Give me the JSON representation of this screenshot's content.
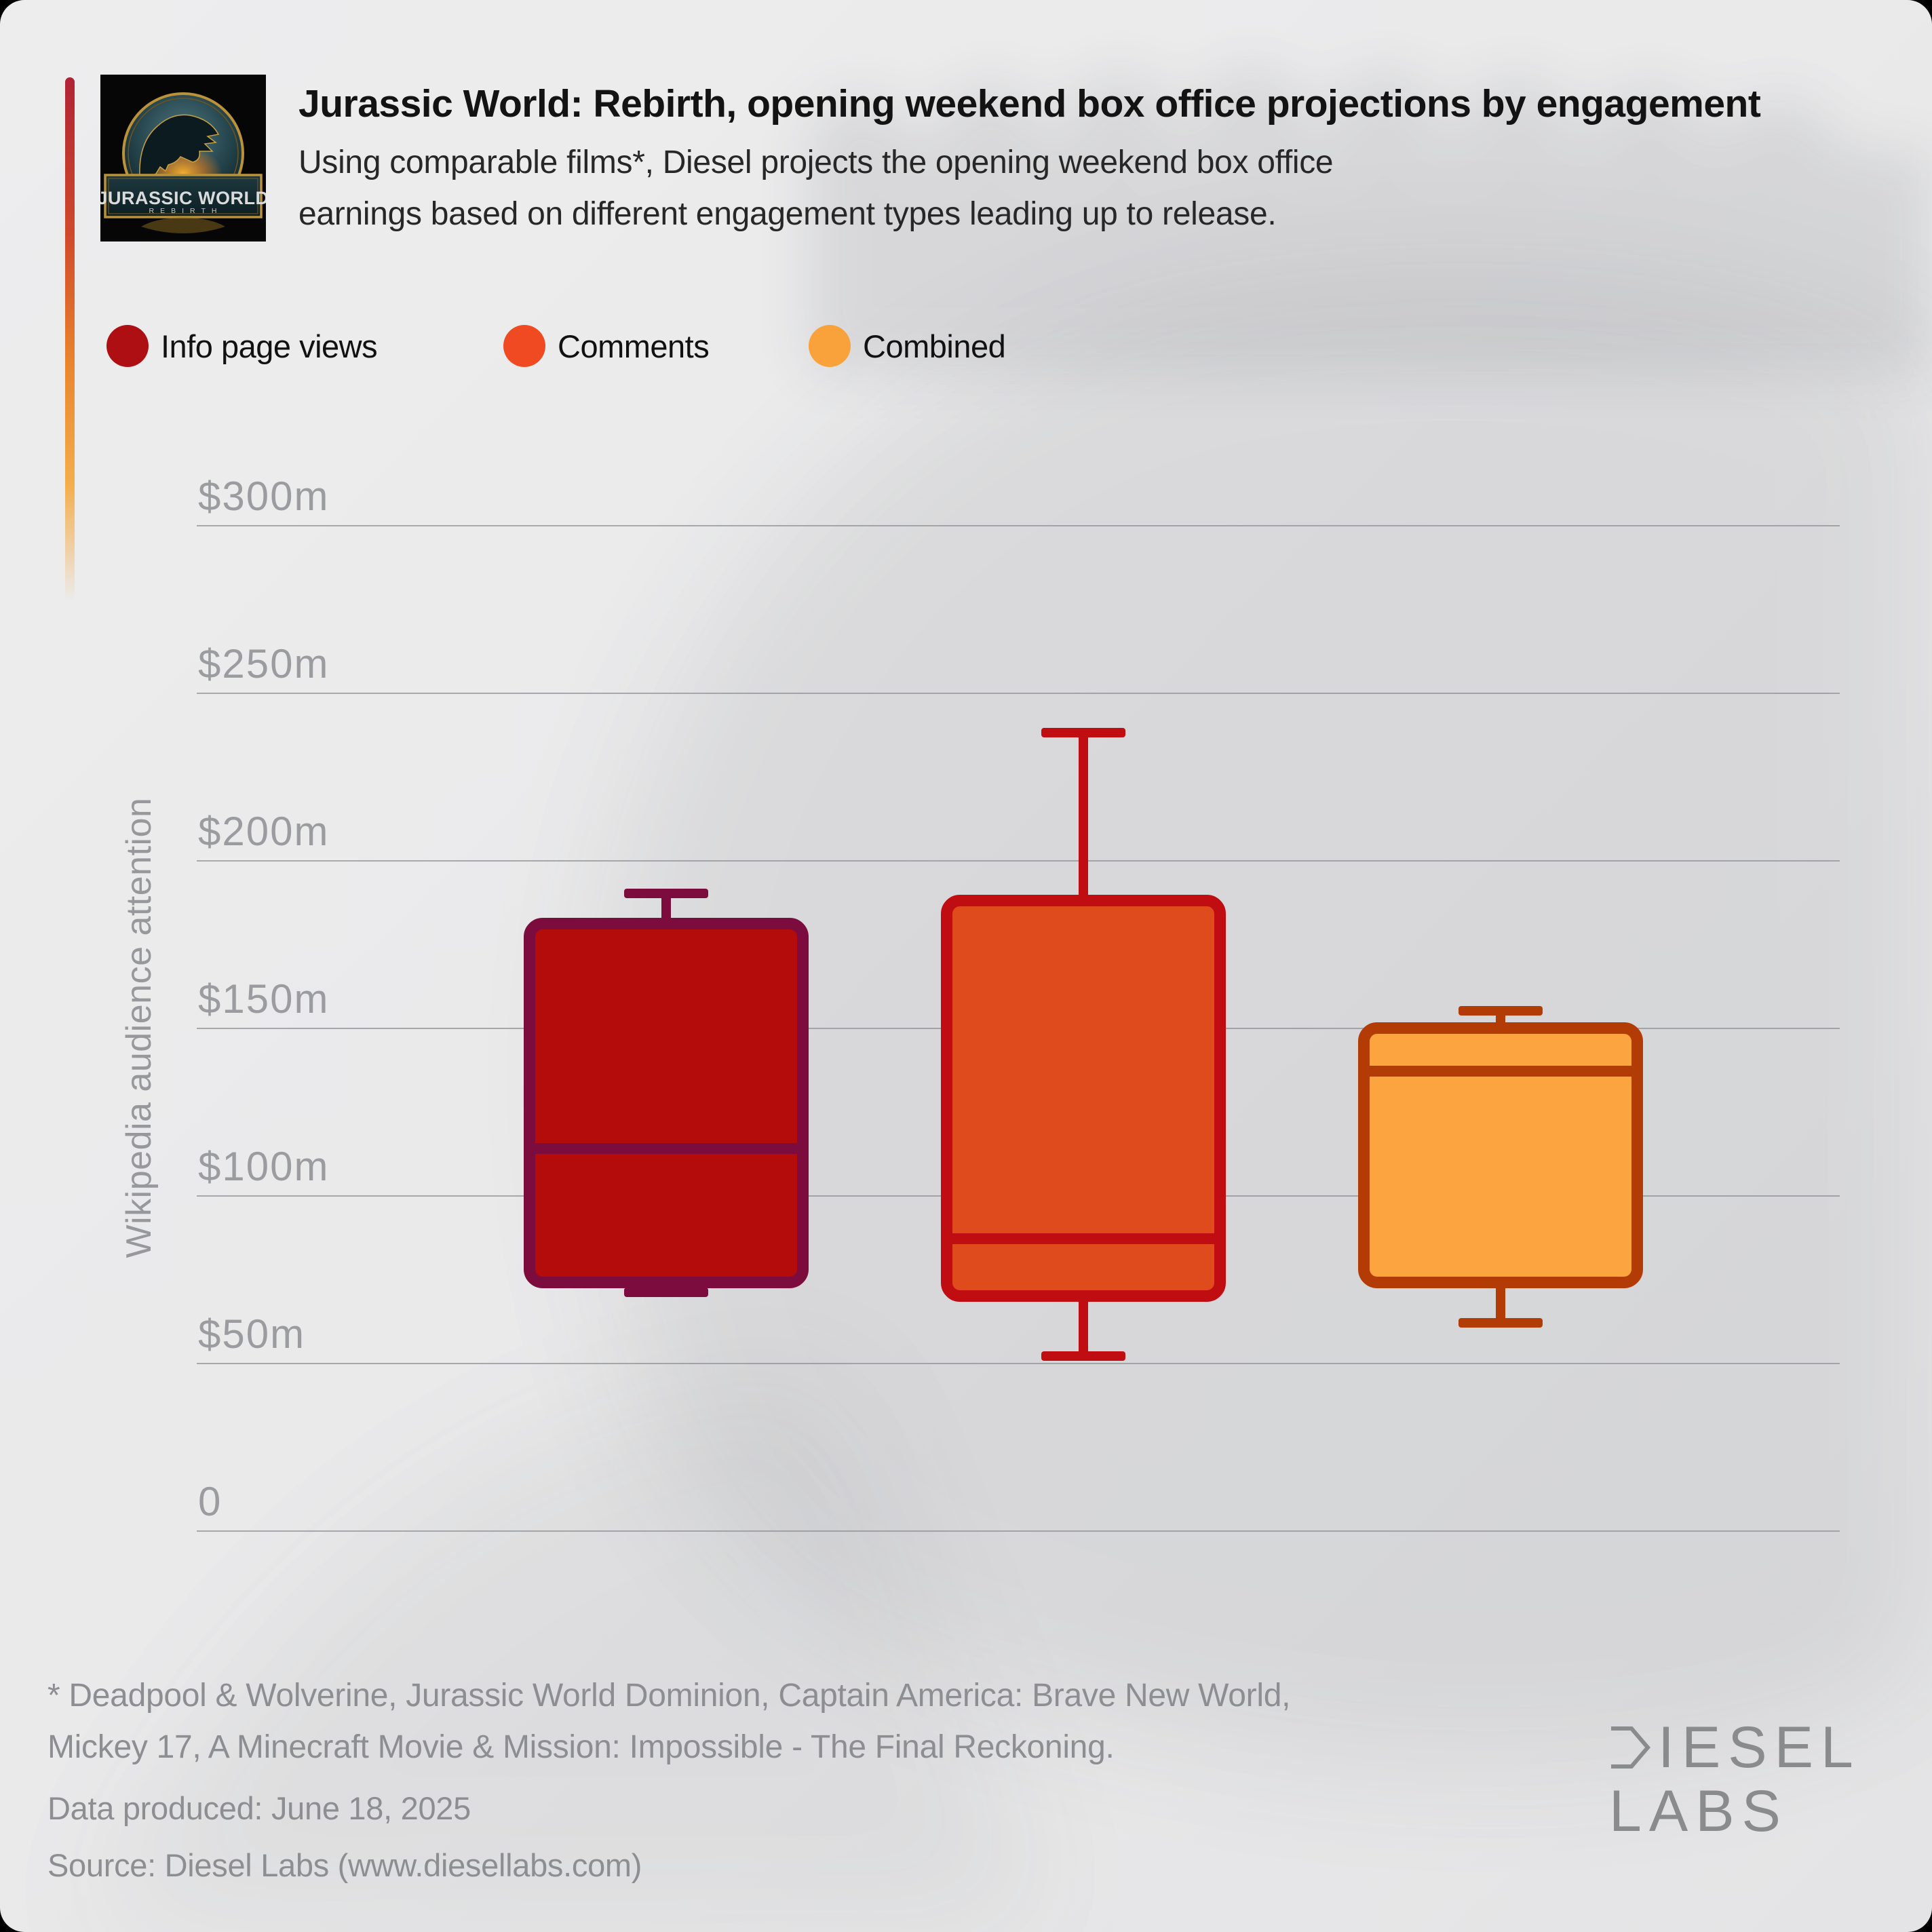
{
  "header": {
    "title": "Jurassic World: Rebirth, opening weekend box office projections by engagement",
    "subtitle_line1": "Using comparable films*, Diesel projects the opening weekend box office",
    "subtitle_line2": "earnings based on different engagement types leading up to release."
  },
  "poster": {
    "title_line1": "JURASSIC WORLD",
    "title_line2": "REBIRTH"
  },
  "legend": [
    {
      "label": "Info page views",
      "color": "#ad0f12"
    },
    {
      "label": "Comments",
      "color": "#f04a22"
    },
    {
      "label": "Combined",
      "color": "#f9a23c"
    }
  ],
  "chart": {
    "y_axis_title": "Wikipedia audience attention",
    "ticks": [
      {
        "label": "$300m",
        "value": 300
      },
      {
        "label": "$250m",
        "value": 250
      },
      {
        "label": "$200m",
        "value": 200
      },
      {
        "label": "$150m",
        "value": 150
      },
      {
        "label": "$100m",
        "value": 100
      },
      {
        "label": "$50m",
        "value": 50
      },
      {
        "label": "0",
        "value": 0
      }
    ]
  },
  "chart_data": {
    "type": "boxplot",
    "title": "Jurassic World: Rebirth, opening weekend box office projections by engagement",
    "ylabel": "Wikipedia audience attention",
    "unit": "$m",
    "ylim": [
      0,
      300
    ],
    "grid": "horizontal",
    "legend_position": "top",
    "series": [
      {
        "name": "Info page views",
        "min": 71,
        "q1": 74,
        "median": 114,
        "q3": 181,
        "max": 190,
        "fill": "#b40b0b",
        "stroke": "#7b0c3d"
      },
      {
        "name": "Comments",
        "min": 52,
        "q1": 70,
        "median": 87,
        "q3": 188,
        "max": 238,
        "fill": "#e04b1e",
        "stroke": "#c00d12"
      },
      {
        "name": "Combined",
        "min": 62,
        "q1": 74,
        "median": 137,
        "q3": 150,
        "max": 155,
        "fill": "#fca43f",
        "stroke": "#b23b06"
      }
    ]
  },
  "footer": {
    "note_line1": "* Deadpool & Wolverine, Jurassic World Dominion, Captain America: Brave New World,",
    "note_line2": "Mickey 17, A Minecraft Movie & Mission: Impossible - The Final Reckoning.",
    "produced": "Data produced: June 18, 2025",
    "source": "Source: Diesel Labs (www.diesellabs.com)"
  },
  "brand": {
    "line1": "DIESEL",
    "line2": "LABS"
  }
}
